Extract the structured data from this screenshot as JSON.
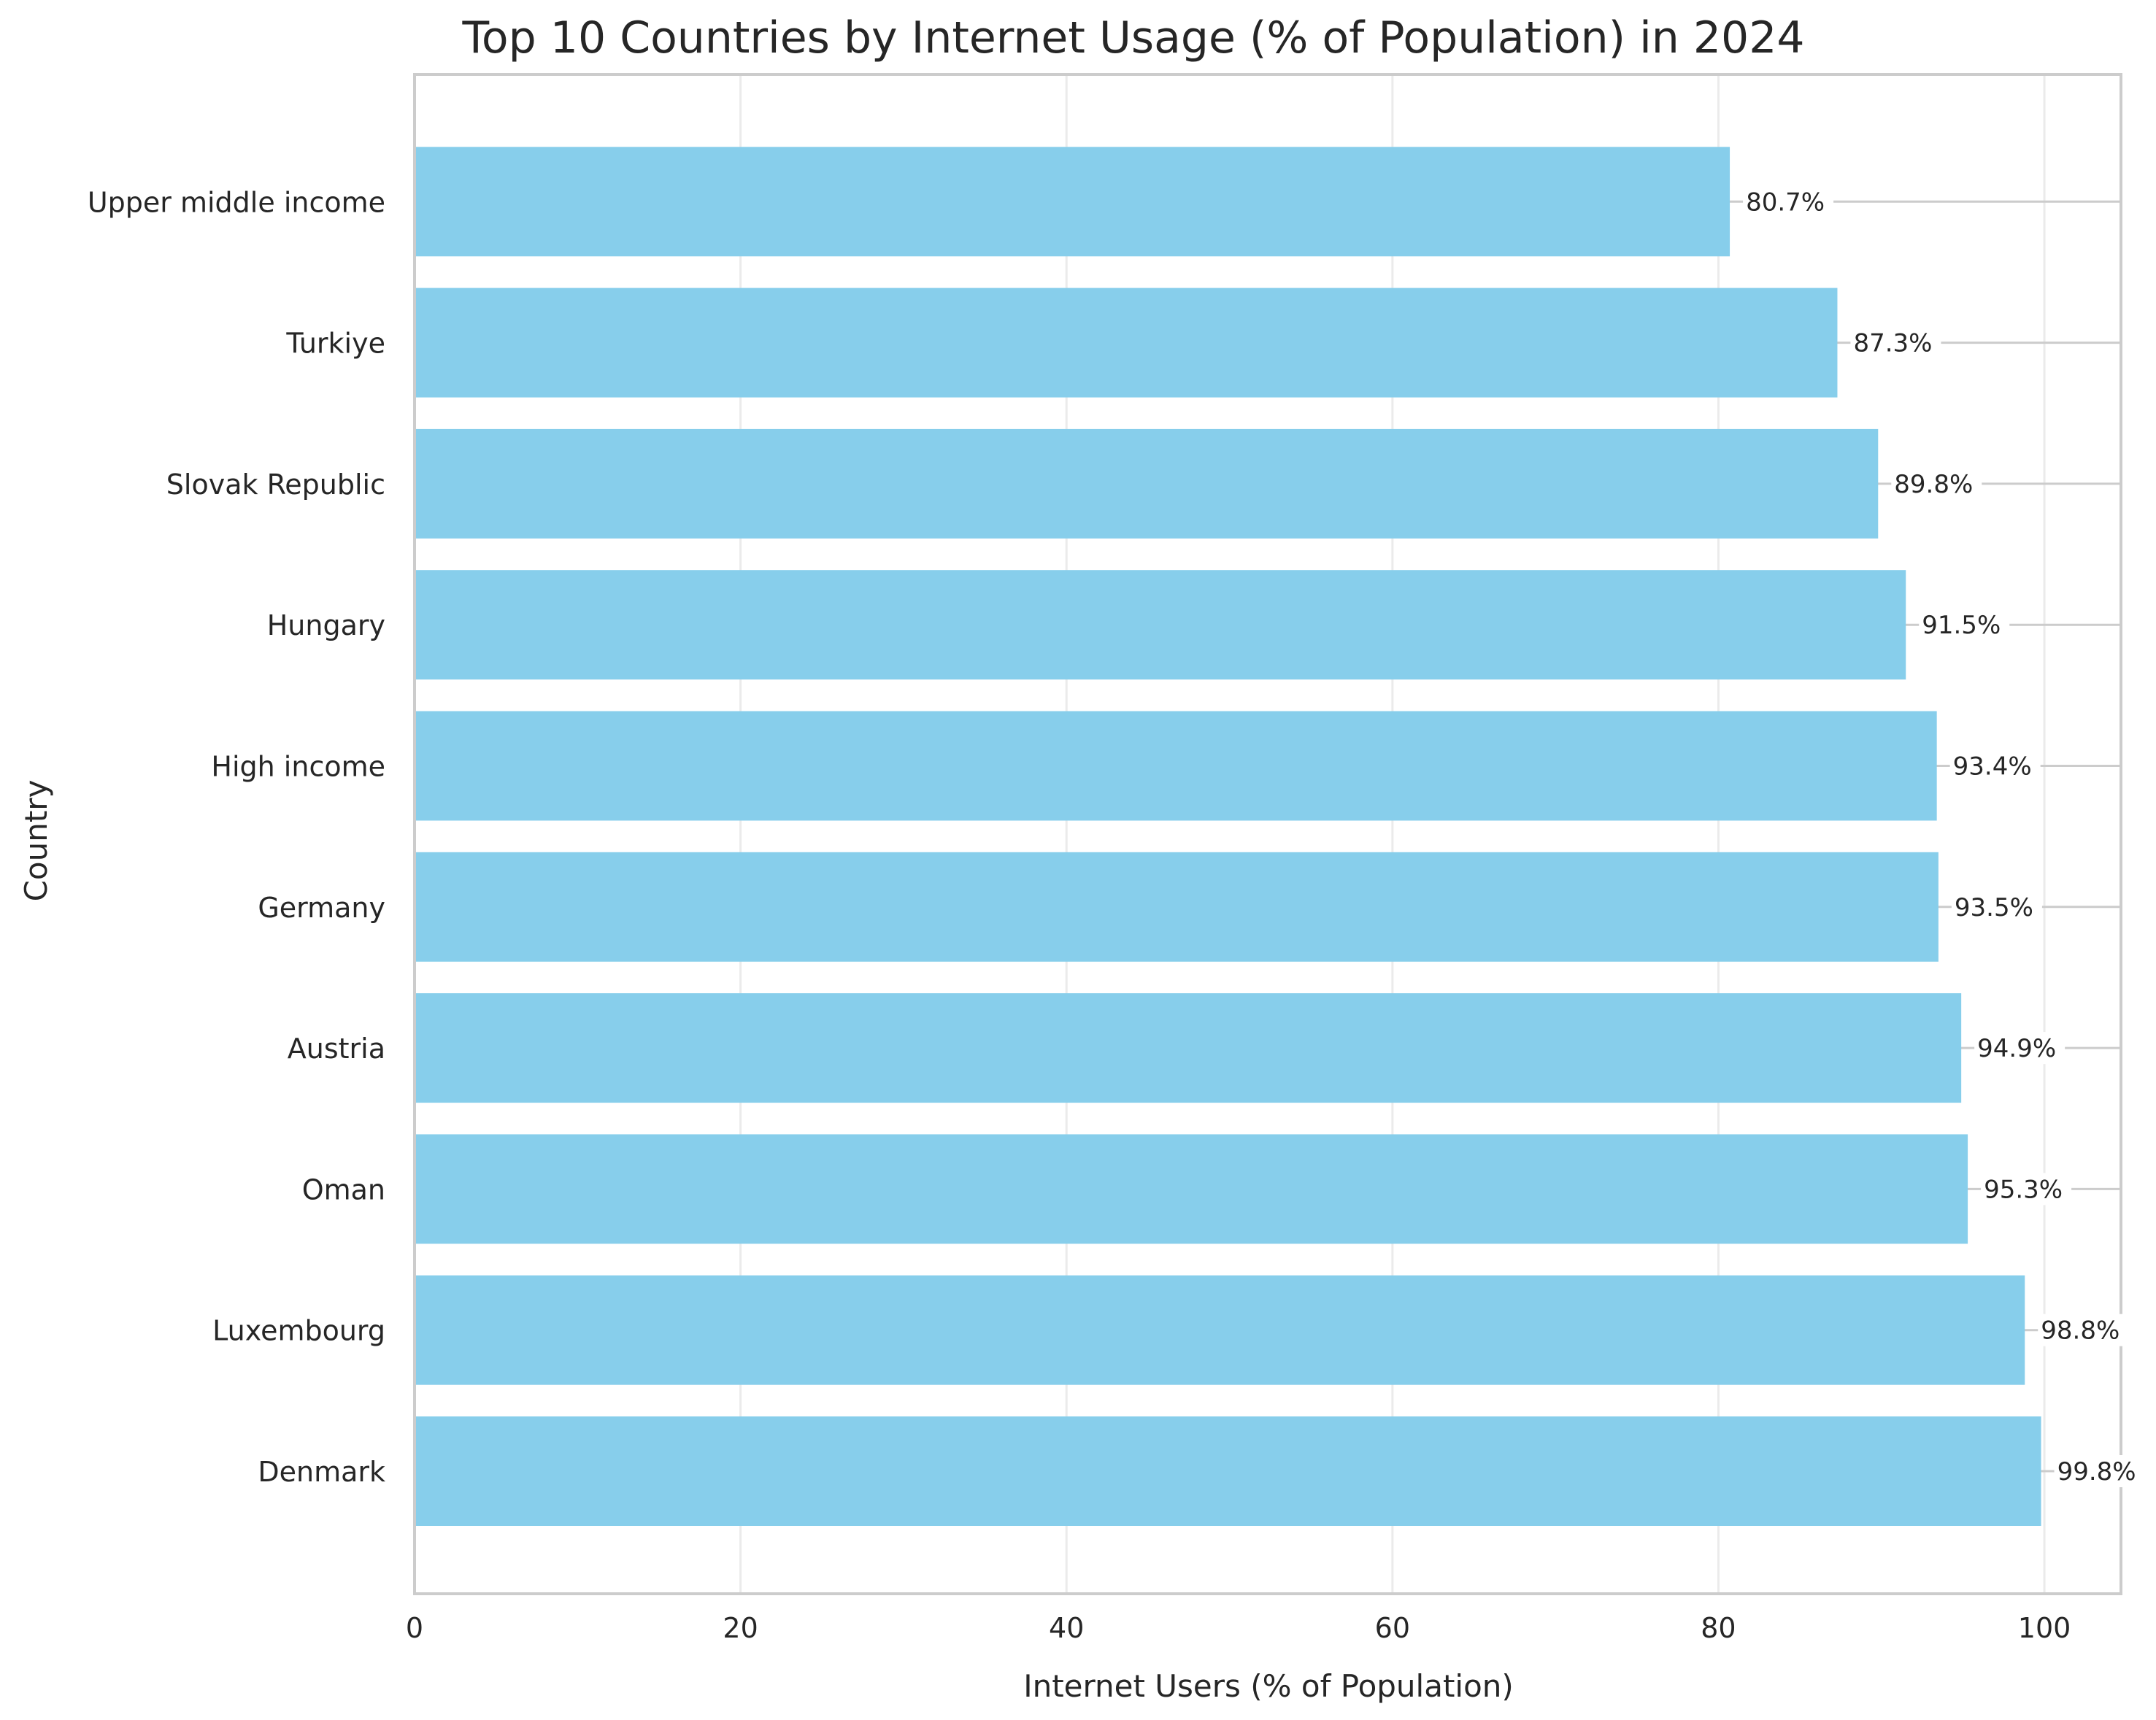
{
  "chart_data": {
    "type": "bar",
    "orientation": "horizontal",
    "title": "Top 10 Countries by Internet Usage (% of Population) in 2024",
    "xlabel": "Internet Users (% of Population)",
    "ylabel": "Country",
    "categories": [
      "Denmark",
      "Luxembourg",
      "Oman",
      "Austria",
      "Germany",
      "High income",
      "Hungary",
      "Slovak Republic",
      "Turkiye",
      "Upper middle income"
    ],
    "values": [
      99.8,
      98.8,
      95.3,
      94.9,
      93.5,
      93.4,
      91.5,
      89.8,
      87.3,
      80.7
    ],
    "data_labels": [
      "99.8%",
      "98.8%",
      "95.3%",
      "94.9%",
      "93.5%",
      "93.4%",
      "91.5%",
      "89.8%",
      "87.3%",
      "80.7%"
    ],
    "xlim": [
      0,
      104.7
    ],
    "xticks": [
      0,
      20,
      40,
      60,
      80,
      100
    ],
    "xtick_labels": [
      "0",
      "20",
      "40",
      "60",
      "80",
      "100"
    ],
    "grid": true,
    "colors": {
      "bar": "#87CEEB",
      "grid": "#EBEBEB",
      "spine": "#CCCCCC",
      "text": "#262626"
    }
  }
}
